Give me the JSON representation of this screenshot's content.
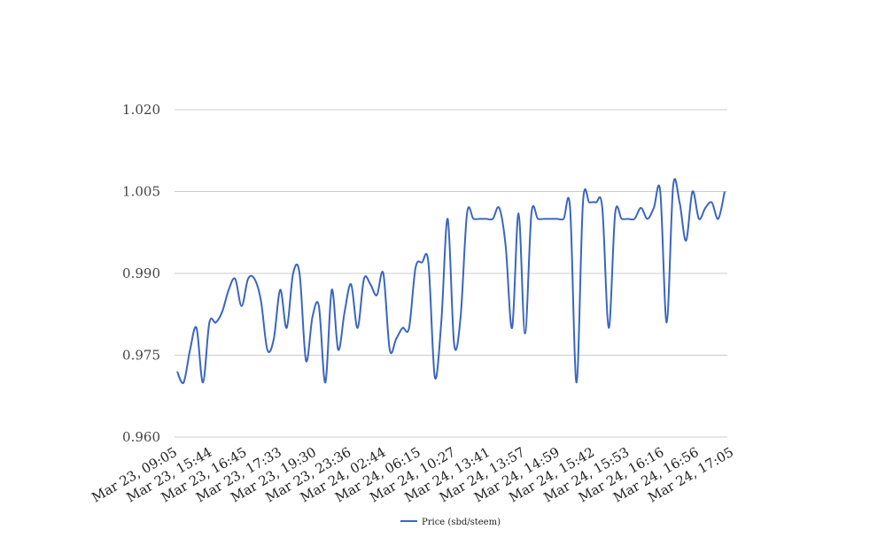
{
  "chart_data": {
    "type": "line",
    "title": "",
    "xlabel": "",
    "ylabel": "",
    "ylim": [
      0.96,
      1.02
    ],
    "yticks": [
      "1.020",
      "1.005",
      "0.990",
      "0.975",
      "0.960"
    ],
    "ytick_values": [
      1.02,
      1.005,
      0.99,
      0.975,
      0.96
    ],
    "x_tick_labels": [
      "Mar 23, 09:05",
      "Mar 23, 15:44",
      "Mar 23, 16:45",
      "Mar 23, 17:33",
      "Mar 23, 19:30",
      "Mar 23, 23:36",
      "Mar 24, 02:44",
      "Mar 24, 06:15",
      "Mar 24, 10:27",
      "Mar 24, 13:41",
      "Mar 24, 13:57",
      "Mar 24, 14:59",
      "Mar 24, 15:42",
      "Mar 24, 15:53",
      "Mar 24, 16:16",
      "Mar 24, 16:56",
      "Mar 24, 17:05"
    ],
    "grid": true,
    "legend_position": "bottom",
    "series": [
      {
        "name": "Price (sbd/steem)",
        "color": "#3a66bf",
        "values": [
          0.972,
          0.97,
          0.976,
          0.98,
          0.97,
          0.981,
          0.981,
          0.983,
          0.987,
          0.989,
          0.984,
          0.989,
          0.989,
          0.985,
          0.976,
          0.978,
          0.987,
          0.98,
          0.99,
          0.99,
          0.974,
          0.982,
          0.984,
          0.97,
          0.987,
          0.976,
          0.983,
          0.988,
          0.98,
          0.989,
          0.988,
          0.986,
          0.99,
          0.976,
          0.978,
          0.98,
          0.98,
          0.991,
          0.992,
          0.992,
          0.971,
          0.981,
          1.0,
          0.977,
          0.982,
          1.001,
          1.0,
          1.0,
          1.0,
          1.0,
          1.002,
          0.995,
          0.98,
          1.001,
          0.979,
          1.001,
          1.0,
          1.0,
          1.0,
          1.0,
          1.0,
          1.002,
          0.97,
          1.003,
          1.003,
          1.003,
          1.002,
          0.98,
          1.001,
          1.0,
          1.0,
          1.0,
          1.002,
          1.0,
          1.002,
          1.005,
          0.981,
          1.006,
          1.003,
          0.996,
          1.005,
          1.0,
          1.002,
          1.003,
          1.0,
          1.005
        ]
      }
    ]
  }
}
